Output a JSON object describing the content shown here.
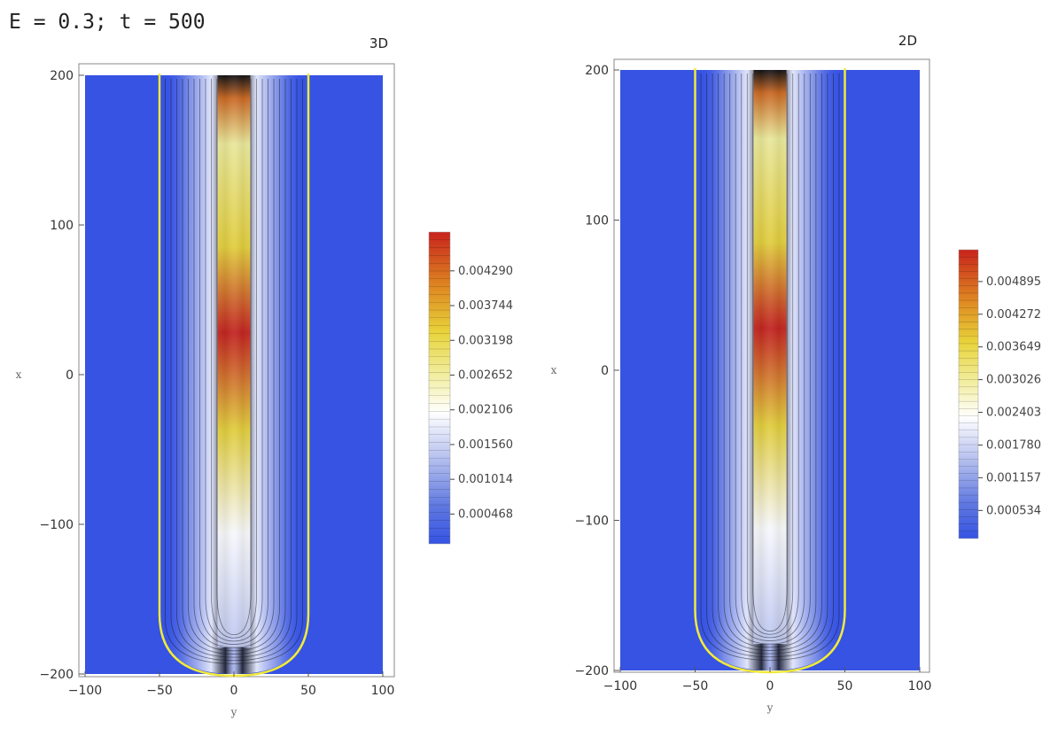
{
  "header": {
    "label": "E = 0.3; t = 500"
  },
  "chart_data": [
    {
      "type": "heatmap",
      "title": "3D",
      "xlabel": "y",
      "ylabel": "x",
      "xlim": [
        -100,
        100
      ],
      "ylim": [
        -200,
        200
      ],
      "x_ticks": [
        -100,
        -50,
        0,
        50,
        100
      ],
      "y_ticks": [
        -200,
        -100,
        0,
        100,
        200
      ],
      "x_tick_labels": [
        "−100",
        "−50",
        "0",
        "50",
        "100"
      ],
      "y_tick_labels": [
        "−200",
        "−100",
        "0",
        "100",
        "200"
      ],
      "boundary": {
        "half_width": 50,
        "x_min": -200,
        "x_max": 200,
        "color": "#f2ea3a"
      },
      "colorbar": {
        "range": [
          0.0,
          0.0049
        ],
        "labels": [
          "0.004290",
          "0.003744",
          "0.003198",
          "0.002652",
          "0.002106",
          "0.001560",
          "0.001014",
          "0.000468"
        ],
        "values": [
          0.00429,
          0.003744,
          0.003198,
          0.002652,
          0.002106,
          0.00156,
          0.001014,
          0.000468
        ]
      },
      "background_color": "#3653e3"
    },
    {
      "type": "heatmap",
      "title": "2D",
      "xlabel": "y",
      "ylabel": "x",
      "xlim": [
        -100,
        100
      ],
      "ylim": [
        -200,
        200
      ],
      "x_ticks": [
        -100,
        -50,
        0,
        50,
        100
      ],
      "y_ticks": [
        -200,
        -100,
        0,
        100,
        200
      ],
      "x_tick_labels": [
        "−100",
        "−50",
        "0",
        "50",
        "100"
      ],
      "y_tick_labels": [
        "−200",
        "−100",
        "0",
        "100",
        "200"
      ],
      "boundary": {
        "half_width": 50,
        "x_min": -200,
        "x_max": 200,
        "color": "#f2ea3a"
      },
      "colorbar": {
        "range": [
          0.0,
          0.0055
        ],
        "labels": [
          "0.004895",
          "0.004272",
          "0.003649",
          "0.003026",
          "0.002403",
          "0.001780",
          "0.001157",
          "0.000534"
        ],
        "values": [
          0.004895,
          0.004272,
          0.003649,
          0.003026,
          0.002403,
          0.00178,
          0.001157,
          0.000534
        ]
      },
      "background_color": "#3653e3"
    }
  ]
}
